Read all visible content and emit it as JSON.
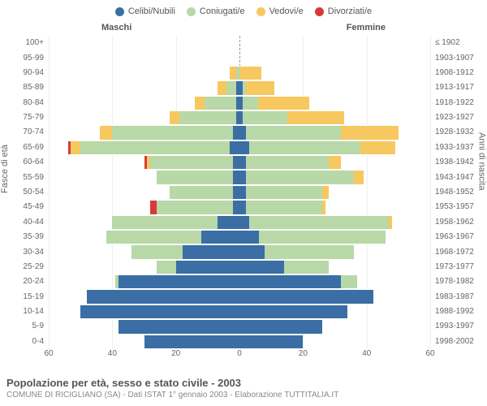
{
  "type": "population-pyramid",
  "title": "Popolazione per età, sesso e stato civile - 2003",
  "subtitle": "COMUNE DI RICIGLIANO (SA) - Dati ISTAT 1° gennaio 2003 - Elaborazione TUTTITALIA.IT",
  "legend": [
    {
      "label": "Celibi/Nubili",
      "color": "#3a6ea5"
    },
    {
      "label": "Coniugati/e",
      "color": "#b8d8a7"
    },
    {
      "label": "Vedovi/e",
      "color": "#f6c85f"
    },
    {
      "label": "Divorziati/e",
      "color": "#d83a3a"
    }
  ],
  "header_male": "Maschi",
  "header_female": "Femmine",
  "axis_left_title": "Fasce di età",
  "axis_right_title": "Anni di nascita",
  "xmax": 60,
  "xticks": [
    60,
    40,
    20,
    0,
    20,
    40,
    60
  ],
  "colors": {
    "single": "#3a6ea5",
    "married": "#b8d8a7",
    "widowed": "#f6c85f",
    "divorced": "#d83a3a",
    "grid": "#eeeeee",
    "center": "#999999",
    "text": "#666666",
    "bg": "#ffffff"
  },
  "fontsize": {
    "legend": 11,
    "labels": 10,
    "title": 13,
    "subtitle": 10,
    "axis_title": 11
  },
  "rows": [
    {
      "age": "100+",
      "birth": "≤ 1902",
      "m": {
        "s": 0,
        "m": 0,
        "w": 0,
        "d": 0
      },
      "f": {
        "s": 0,
        "m": 0,
        "w": 0,
        "d": 0
      }
    },
    {
      "age": "95-99",
      "birth": "1903-1907",
      "m": {
        "s": 0,
        "m": 0,
        "w": 0,
        "d": 0
      },
      "f": {
        "s": 0,
        "m": 0,
        "w": 0,
        "d": 0
      }
    },
    {
      "age": "90-94",
      "birth": "1908-1912",
      "m": {
        "s": 0,
        "m": 1,
        "w": 2,
        "d": 0
      },
      "f": {
        "s": 0,
        "m": 0,
        "w": 7,
        "d": 0
      }
    },
    {
      "age": "85-89",
      "birth": "1913-1917",
      "m": {
        "s": 1,
        "m": 3,
        "w": 3,
        "d": 0
      },
      "f": {
        "s": 1,
        "m": 1,
        "w": 9,
        "d": 0
      }
    },
    {
      "age": "80-84",
      "birth": "1918-1922",
      "m": {
        "s": 1,
        "m": 10,
        "w": 3,
        "d": 0
      },
      "f": {
        "s": 1,
        "m": 5,
        "w": 16,
        "d": 0
      }
    },
    {
      "age": "75-79",
      "birth": "1923-1927",
      "m": {
        "s": 1,
        "m": 18,
        "w": 3,
        "d": 0
      },
      "f": {
        "s": 1,
        "m": 14,
        "w": 18,
        "d": 0
      }
    },
    {
      "age": "70-74",
      "birth": "1928-1932",
      "m": {
        "s": 2,
        "m": 38,
        "w": 4,
        "d": 0
      },
      "f": {
        "s": 2,
        "m": 30,
        "w": 18,
        "d": 0
      }
    },
    {
      "age": "65-69",
      "birth": "1933-1937",
      "m": {
        "s": 3,
        "m": 47,
        "w": 3,
        "d": 1
      },
      "f": {
        "s": 3,
        "m": 35,
        "w": 11,
        "d": 0
      }
    },
    {
      "age": "60-64",
      "birth": "1938-1942",
      "m": {
        "s": 2,
        "m": 26,
        "w": 1,
        "d": 1
      },
      "f": {
        "s": 2,
        "m": 26,
        "w": 4,
        "d": 0
      }
    },
    {
      "age": "55-59",
      "birth": "1943-1947",
      "m": {
        "s": 2,
        "m": 24,
        "w": 0,
        "d": 0
      },
      "f": {
        "s": 2,
        "m": 34,
        "w": 3,
        "d": 0
      }
    },
    {
      "age": "50-54",
      "birth": "1948-1952",
      "m": {
        "s": 2,
        "m": 20,
        "w": 0,
        "d": 0
      },
      "f": {
        "s": 2,
        "m": 24,
        "w": 2,
        "d": 0
      }
    },
    {
      "age": "45-49",
      "birth": "1953-1957",
      "m": {
        "s": 2,
        "m": 24,
        "w": 0,
        "d": 2
      },
      "f": {
        "s": 2,
        "m": 24,
        "w": 1,
        "d": 0
      }
    },
    {
      "age": "40-44",
      "birth": "1958-1962",
      "m": {
        "s": 7,
        "m": 33,
        "w": 0,
        "d": 0
      },
      "f": {
        "s": 3,
        "m": 44,
        "w": 1,
        "d": 0
      }
    },
    {
      "age": "35-39",
      "birth": "1963-1967",
      "m": {
        "s": 12,
        "m": 30,
        "w": 0,
        "d": 0
      },
      "f": {
        "s": 6,
        "m": 40,
        "w": 0,
        "d": 0
      }
    },
    {
      "age": "30-34",
      "birth": "1968-1972",
      "m": {
        "s": 18,
        "m": 16,
        "w": 0,
        "d": 0
      },
      "f": {
        "s": 8,
        "m": 28,
        "w": 0,
        "d": 0
      }
    },
    {
      "age": "25-29",
      "birth": "1973-1977",
      "m": {
        "s": 20,
        "m": 6,
        "w": 0,
        "d": 0
      },
      "f": {
        "s": 14,
        "m": 14,
        "w": 0,
        "d": 0
      }
    },
    {
      "age": "20-24",
      "birth": "1978-1982",
      "m": {
        "s": 38,
        "m": 1,
        "w": 0,
        "d": 0
      },
      "f": {
        "s": 32,
        "m": 5,
        "w": 0,
        "d": 0
      }
    },
    {
      "age": "15-19",
      "birth": "1983-1987",
      "m": {
        "s": 48,
        "m": 0,
        "w": 0,
        "d": 0
      },
      "f": {
        "s": 42,
        "m": 0,
        "w": 0,
        "d": 0
      }
    },
    {
      "age": "10-14",
      "birth": "1988-1992",
      "m": {
        "s": 50,
        "m": 0,
        "w": 0,
        "d": 0
      },
      "f": {
        "s": 34,
        "m": 0,
        "w": 0,
        "d": 0
      }
    },
    {
      "age": "5-9",
      "birth": "1993-1997",
      "m": {
        "s": 38,
        "m": 0,
        "w": 0,
        "d": 0
      },
      "f": {
        "s": 26,
        "m": 0,
        "w": 0,
        "d": 0
      }
    },
    {
      "age": "0-4",
      "birth": "1998-2002",
      "m": {
        "s": 30,
        "m": 0,
        "w": 0,
        "d": 0
      },
      "f": {
        "s": 20,
        "m": 0,
        "w": 0,
        "d": 0
      }
    }
  ]
}
